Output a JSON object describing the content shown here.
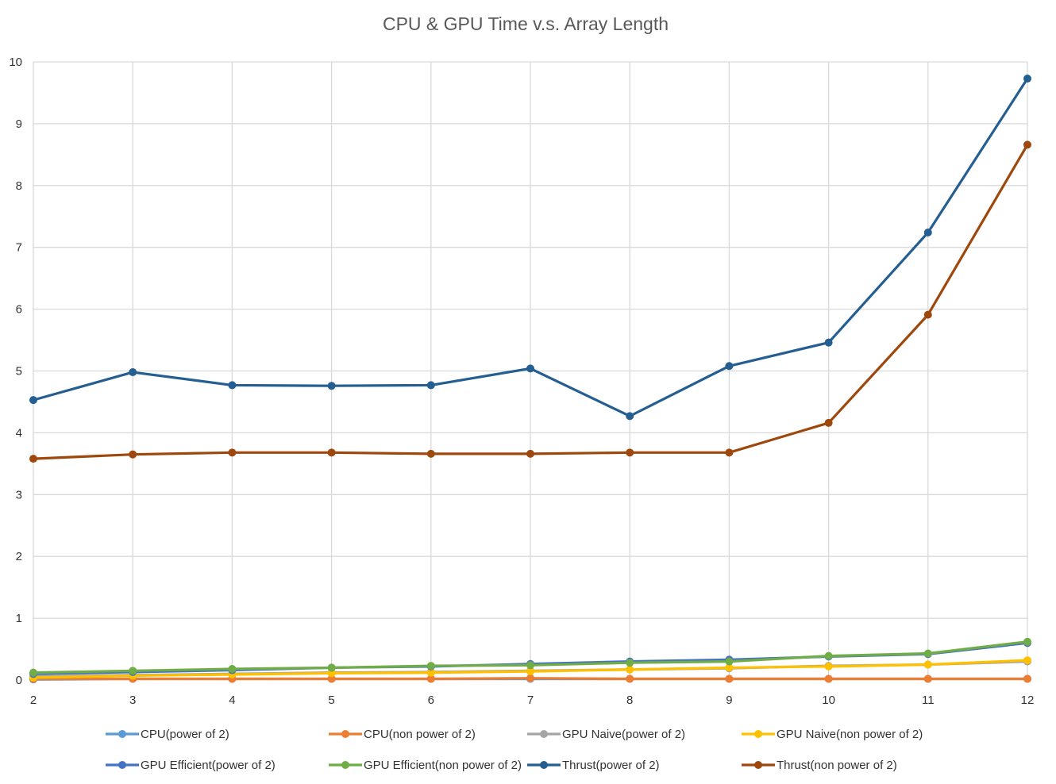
{
  "chart_data": {
    "type": "line",
    "title": "CPU & GPU Time v.s. Array Length",
    "xlabel": "",
    "ylabel": "",
    "x": [
      2,
      3,
      4,
      5,
      6,
      7,
      8,
      9,
      10,
      11,
      12
    ],
    "xlim": [
      2,
      12
    ],
    "ylim": [
      0,
      10
    ],
    "y_ticks": [
      "0",
      "1",
      "2",
      "3",
      "4",
      "5",
      "6",
      "7",
      "8",
      "9",
      "10"
    ],
    "x_ticks": [
      "2",
      "3",
      "4",
      "5",
      "6",
      "7",
      "8",
      "9",
      "10",
      "11",
      "12"
    ],
    "grid": true,
    "legend_position": "bottom",
    "series": [
      {
        "name": "CPU(power of 2)",
        "color": "#5b9bd5",
        "values": [
          0.01,
          0.02,
          0.02,
          0.02,
          0.02,
          0.02,
          0.02,
          0.02,
          0.02,
          0.02,
          0.02
        ]
      },
      {
        "name": "CPU(non power of 2)",
        "color": "#ed7d31",
        "values": [
          0.02,
          0.02,
          0.02,
          0.02,
          0.02,
          0.03,
          0.02,
          0.02,
          0.02,
          0.02,
          0.02
        ]
      },
      {
        "name": "GPU Naive(power of 2)",
        "color": "#a5a5a5",
        "values": [
          0.06,
          0.08,
          0.1,
          0.12,
          0.13,
          0.15,
          0.17,
          0.19,
          0.23,
          0.25,
          0.3
        ]
      },
      {
        "name": "GPU Naive(non power of 2)",
        "color": "#ffc000",
        "values": [
          0.04,
          0.07,
          0.09,
          0.11,
          0.12,
          0.14,
          0.17,
          0.2,
          0.22,
          0.25,
          0.32
        ]
      },
      {
        "name": "GPU Efficient(power of 2)",
        "color": "#4472c4",
        "values": [
          0.1,
          0.13,
          0.16,
          0.2,
          0.22,
          0.26,
          0.3,
          0.33,
          0.38,
          0.42,
          0.6
        ]
      },
      {
        "name": "GPU Efficient(non power of 2)",
        "color": "#70ad47",
        "values": [
          0.12,
          0.15,
          0.18,
          0.2,
          0.23,
          0.24,
          0.28,
          0.3,
          0.39,
          0.43,
          0.62
        ]
      },
      {
        "name": "Thrust(power of 2)",
        "color": "#255e91",
        "values": [
          4.53,
          4.98,
          4.77,
          4.76,
          4.77,
          5.04,
          4.27,
          5.08,
          5.46,
          7.24,
          9.73
        ]
      },
      {
        "name": "Thrust(non power of 2)",
        "color": "#9e480e",
        "values": [
          3.58,
          3.65,
          3.68,
          3.68,
          3.66,
          3.66,
          3.68,
          3.68,
          4.16,
          5.91,
          8.66
        ]
      }
    ]
  }
}
